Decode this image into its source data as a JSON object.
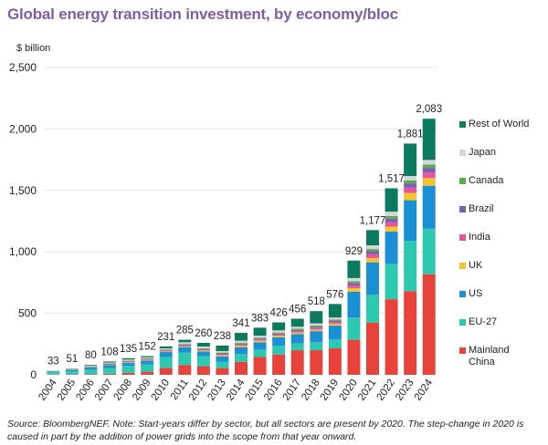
{
  "chart_data": {
    "type": "bar",
    "stacked": true,
    "title": "Global energy transition investment, by economy/bloc",
    "ylabel": "$ billion",
    "xlabel": "",
    "ylim": [
      0,
      2500
    ],
    "yticks": [
      0,
      500,
      1000,
      1500,
      2000,
      2500
    ],
    "ytick_labels": [
      "0",
      "500",
      "1,000",
      "1,500",
      "2,000",
      "2,500"
    ],
    "grid": true,
    "legend_position": "right",
    "categories": [
      "2004",
      "2005",
      "2006",
      "2007",
      "2008",
      "2009",
      "2010",
      "2011",
      "2012",
      "2013",
      "2014",
      "2015",
      "2016",
      "2017",
      "2018",
      "2019",
      "2020",
      "2021",
      "2022",
      "2023",
      "2024"
    ],
    "totals": [
      33,
      51,
      80,
      108,
      135,
      152,
      231,
      285,
      260,
      238,
      341,
      383,
      426,
      456,
      518,
      576,
      929,
      1177,
      1517,
      1881,
      2083
    ],
    "total_labels": [
      "33",
      "51",
      "80",
      "108",
      "135",
      "152",
      "231",
      "285",
      "260",
      "238",
      "341",
      "383",
      "426",
      "456",
      "518",
      "576",
      "929",
      "1,177",
      "1,517",
      "1,881",
      "2,083"
    ],
    "series": [
      {
        "name": "Mainland China",
        "color": "#e8433a",
        "values": [
          2,
          3,
          6,
          9,
          17,
          25,
          55,
          80,
          70,
          55,
          105,
          145,
          165,
          200,
          200,
          215,
          285,
          425,
          615,
          680,
          818
        ]
      },
      {
        "name": "EU-27",
        "color": "#2cc9b0",
        "values": [
          18,
          26,
          36,
          46,
          56,
          60,
          90,
          100,
          80,
          50,
          65,
          60,
          70,
          55,
          65,
          75,
          180,
          225,
          290,
          410,
          370
        ]
      },
      {
        "name": "US",
        "color": "#1b8fd4",
        "values": [
          6,
          10,
          17,
          23,
          25,
          30,
          40,
          45,
          40,
          45,
          55,
          60,
          70,
          75,
          90,
          110,
          210,
          265,
          260,
          330,
          350
        ]
      },
      {
        "name": "UK",
        "color": "#f4c430",
        "values": [
          1,
          2,
          3,
          4,
          5,
          6,
          5,
          6,
          8,
          10,
          12,
          12,
          12,
          13,
          13,
          15,
          30,
          35,
          40,
          60,
          62
        ]
      },
      {
        "name": "India",
        "color": "#e6569d",
        "values": [
          1,
          1,
          2,
          3,
          4,
          4,
          5,
          6,
          6,
          7,
          9,
          10,
          10,
          12,
          13,
          13,
          22,
          30,
          35,
          42,
          45
        ]
      },
      {
        "name": "Brazil",
        "color": "#7c5fb2",
        "values": [
          1,
          2,
          3,
          5,
          6,
          6,
          5,
          7,
          6,
          8,
          8,
          8,
          8,
          10,
          10,
          12,
          20,
          25,
          30,
          35,
          38
        ]
      },
      {
        "name": "Canada",
        "color": "#5aaa4f",
        "values": [
          1,
          1,
          2,
          3,
          3,
          3,
          5,
          6,
          6,
          6,
          8,
          8,
          9,
          10,
          10,
          10,
          15,
          18,
          22,
          25,
          28
        ]
      },
      {
        "name": "Japan",
        "color": "#d6d6d6",
        "values": [
          2,
          3,
          5,
          7,
          8,
          8,
          10,
          15,
          14,
          12,
          15,
          15,
          17,
          16,
          17,
          16,
          25,
          30,
          35,
          35,
          37
        ]
      },
      {
        "name": "Rest of World",
        "color": "#0b7a5f",
        "values": [
          1,
          3,
          6,
          8,
          11,
          10,
          16,
          20,
          30,
          45,
          64,
          65,
          65,
          65,
          100,
          110,
          142,
          124,
          190,
          264,
          335
        ]
      }
    ]
  },
  "legend": {
    "items": [
      {
        "label": "Rest of World",
        "color": "#0b7a5f"
      },
      {
        "label": "Japan",
        "color": "#d6d6d6"
      },
      {
        "label": "Canada",
        "color": "#5aaa4f"
      },
      {
        "label": "Brazil",
        "color": "#7c5fb2"
      },
      {
        "label": "India",
        "color": "#e6569d"
      },
      {
        "label": "UK",
        "color": "#f4c430"
      },
      {
        "label": "US",
        "color": "#1b8fd4"
      },
      {
        "label": "EU-27",
        "color": "#2cc9b0"
      },
      {
        "label": "Mainland\nChina",
        "color": "#e8433a"
      }
    ]
  },
  "note": "Source: BloombergNEF. Note: Start-years differ by sector, but all sectors are present by 2020. The step-change in 2020 is caused in part by the addition of power grids into the scope from that year onward."
}
